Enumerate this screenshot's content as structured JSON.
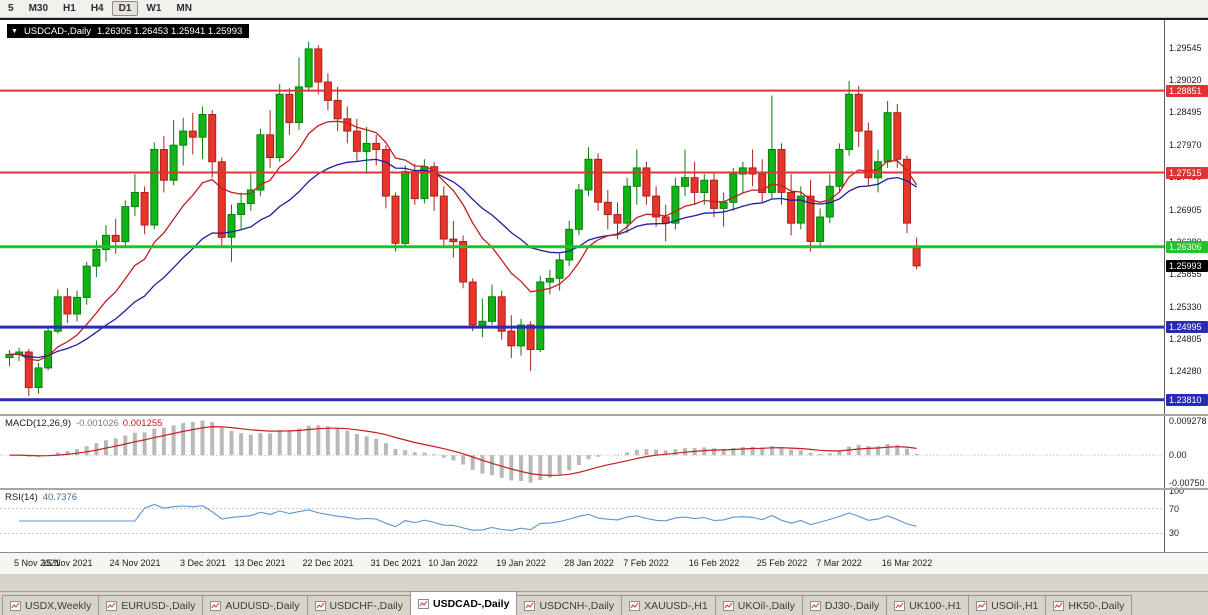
{
  "toolbar": {
    "timeframes": [
      "5",
      "M30",
      "H1",
      "H4",
      "D1",
      "W1",
      "MN"
    ],
    "active": "D1"
  },
  "chart": {
    "title": {
      "dropdown_icon": "▼",
      "symbol": "USDCAD-,Daily",
      "ohlc_text": "1.26305 1.26453 1.25941 1.25993"
    },
    "price_axis_labels": [
      "1.29545",
      "1.29020",
      "1.28495",
      "1.27970",
      "1.27450",
      "1.26905",
      "1.26380",
      "1.25855",
      "1.25330",
      "1.24805",
      "1.24280"
    ],
    "hlines": [
      {
        "price": 1.28851,
        "label": "1.28851",
        "color": "#e03434",
        "width": 2
      },
      {
        "price": 1.27515,
        "label": "1.27515",
        "color": "#e03434",
        "width": 2
      },
      {
        "price": 1.26306,
        "label": "1.26306",
        "color": "#1dc42d",
        "width": 3
      },
      {
        "price": 1.24995,
        "label": "1.24995",
        "color": "#2a2ab8",
        "width": 3
      },
      {
        "price": 1.2381,
        "label": "1.23810",
        "color": "#2a2ab8",
        "width": 3
      }
    ],
    "current_price": {
      "label": "1.25993",
      "value": 1.25993,
      "bg": "#000000"
    },
    "colors": {
      "up_fill": "#10b415",
      "up_stroke": "#0a7e0e",
      "down_fill": "#e6352b",
      "down_stroke": "#a8221b",
      "ma_fast": "#c41e1e",
      "ma_slow": "#1f1f9e"
    }
  },
  "macd": {
    "label": "MACD(12,26,9)",
    "value_main": "-0.001026",
    "value_signal": "0.001255",
    "axis_labels": [
      "0.009278",
      "0.00",
      "-0.00750"
    ],
    "histogram_color": "#b9b9b9",
    "signal_color": "#c41e1e"
  },
  "rsi": {
    "label": "RSI(14)",
    "value": "40.7376",
    "axis_labels": [
      "100",
      "70",
      "30"
    ],
    "levels": [
      70,
      30
    ],
    "line_color": "#5b95cf"
  },
  "x_axis": {
    "labels": [
      {
        "text": "5 Nov 2021",
        "i": 0
      },
      {
        "text": "15 Nov 2021",
        "i": 6
      },
      {
        "text": "24 Nov 2021",
        "i": 13
      },
      {
        "text": "3 Dec 2021",
        "i": 20
      },
      {
        "text": "13 Dec 2021",
        "i": 26
      },
      {
        "text": "22 Dec 2021",
        "i": 33
      },
      {
        "text": "31 Dec 2021",
        "i": 40
      },
      {
        "text": "10 Jan 2022",
        "i": 46
      },
      {
        "text": "19 Jan 2022",
        "i": 53
      },
      {
        "text": "28 Jan 2022",
        "i": 60
      },
      {
        "text": "7 Feb 2022",
        "i": 66
      },
      {
        "text": "16 Feb 2022",
        "i": 73
      },
      {
        "text": "25 Feb 2022",
        "i": 80
      },
      {
        "text": "7 Mar 2022",
        "i": 86
      },
      {
        "text": "16 Mar 2022",
        "i": 93
      }
    ]
  },
  "tabs": {
    "items": [
      "USDX,Weekly",
      "EURUSD-,Daily",
      "AUDUSD-,Daily",
      "USDCHF-,Daily",
      "USDCAD-,Daily",
      "USDCNH-,Daily",
      "XAUUSD-,H1",
      "UKOil-,Daily",
      "DJ30-,Daily",
      "UK100-,H1",
      "USOil-,H1",
      "HK50-,Daily"
    ],
    "active_index": 4
  },
  "chart_data": {
    "type": "candlestick",
    "symbol": "USDCAD-",
    "timeframe": "Daily",
    "last_ohlc": {
      "open": 1.26305,
      "high": 1.26453,
      "low": 1.25941,
      "close": 1.25993
    },
    "indicators": {
      "ma_fast_period": 12,
      "ma_slow_period": 26,
      "macd_params": [
        12,
        26,
        9
      ],
      "macd_values": [
        -0.001026,
        0.001255
      ],
      "rsi_period": 14,
      "rsi_value": 40.7376
    },
    "ohlc": [
      [
        1.245,
        1.2462,
        1.2436,
        1.2455
      ],
      [
        1.2455,
        1.2466,
        1.2444,
        1.2459
      ],
      [
        1.2459,
        1.2464,
        1.2387,
        1.2401
      ],
      [
        1.2401,
        1.2441,
        1.2391,
        1.2433
      ],
      [
        1.2433,
        1.2501,
        1.2429,
        1.2493
      ],
      [
        1.2493,
        1.2561,
        1.2489,
        1.2549
      ],
      [
        1.2549,
        1.2563,
        1.2506,
        1.2521
      ],
      [
        1.2521,
        1.2559,
        1.2509,
        1.2548
      ],
      [
        1.2548,
        1.2606,
        1.2536,
        1.2599
      ],
      [
        1.2599,
        1.2641,
        1.2581,
        1.2626
      ],
      [
        1.2626,
        1.2666,
        1.2606,
        1.2649
      ],
      [
        1.2649,
        1.2676,
        1.2619,
        1.2639
      ],
      [
        1.2639,
        1.2706,
        1.2629,
        1.2696
      ],
      [
        1.2696,
        1.2749,
        1.2681,
        1.2719
      ],
      [
        1.2719,
        1.2729,
        1.2651,
        1.2666
      ],
      [
        1.2666,
        1.2801,
        1.2659,
        1.2789
      ],
      [
        1.2789,
        1.2811,
        1.2719,
        1.2739
      ],
      [
        1.2739,
        1.2837,
        1.2731,
        1.2796
      ],
      [
        1.2796,
        1.2841,
        1.2763,
        1.2819
      ],
      [
        1.2819,
        1.2849,
        1.2781,
        1.2809
      ],
      [
        1.2809,
        1.2859,
        1.2773,
        1.2846
      ],
      [
        1.2846,
        1.2853,
        1.2743,
        1.2769
      ],
      [
        1.2769,
        1.2776,
        1.2629,
        1.2646
      ],
      [
        1.2646,
        1.2699,
        1.2606,
        1.2683
      ],
      [
        1.2683,
        1.2719,
        1.2659,
        1.2701
      ],
      [
        1.2701,
        1.2753,
        1.2689,
        1.2723
      ],
      [
        1.2723,
        1.2823,
        1.2713,
        1.2813
      ],
      [
        1.2813,
        1.2853,
        1.2759,
        1.2776
      ],
      [
        1.2776,
        1.2896,
        1.2769,
        1.2879
      ],
      [
        1.2879,
        1.2889,
        1.2813,
        1.2833
      ],
      [
        1.2833,
        1.2939,
        1.2821,
        1.2891
      ],
      [
        1.2891,
        1.2965,
        1.2883,
        1.2953
      ],
      [
        1.2953,
        1.2959,
        1.2879,
        1.2899
      ],
      [
        1.2899,
        1.2913,
        1.2853,
        1.2869
      ],
      [
        1.2869,
        1.2891,
        1.2819,
        1.2839
      ],
      [
        1.2839,
        1.2859,
        1.2799,
        1.2819
      ],
      [
        1.2819,
        1.2839,
        1.2769,
        1.2786
      ],
      [
        1.2786,
        1.2826,
        1.2749,
        1.2799
      ],
      [
        1.2799,
        1.2813,
        1.2763,
        1.2789
      ],
      [
        1.2789,
        1.2796,
        1.2693,
        1.2713
      ],
      [
        1.2713,
        1.2719,
        1.2623,
        1.2636
      ],
      [
        1.2636,
        1.2763,
        1.2629,
        1.2753
      ],
      [
        1.2753,
        1.2766,
        1.2699,
        1.2709
      ],
      [
        1.2709,
        1.2773,
        1.2701,
        1.2761
      ],
      [
        1.2761,
        1.2769,
        1.2689,
        1.2713
      ],
      [
        1.2713,
        1.2729,
        1.2633,
        1.2643
      ],
      [
        1.2643,
        1.2673,
        1.2613,
        1.2639
      ],
      [
        1.2639,
        1.2649,
        1.2563,
        1.2573
      ],
      [
        1.2573,
        1.2579,
        1.2493,
        1.2503
      ],
      [
        1.2503,
        1.2546,
        1.2483,
        1.2509
      ],
      [
        1.2509,
        1.2569,
        1.2503,
        1.2549
      ],
      [
        1.2549,
        1.2559,
        1.2479,
        1.2493
      ],
      [
        1.2493,
        1.2519,
        1.2449,
        1.2469
      ],
      [
        1.2469,
        1.2513,
        1.2453,
        1.2503
      ],
      [
        1.2503,
        1.2509,
        1.2428,
        1.2463
      ],
      [
        1.2463,
        1.2583,
        1.2459,
        1.2573
      ],
      [
        1.2573,
        1.2593,
        1.2553,
        1.2579
      ],
      [
        1.2579,
        1.2619,
        1.2559,
        1.2609
      ],
      [
        1.2609,
        1.2673,
        1.2599,
        1.2659
      ],
      [
        1.2659,
        1.2733,
        1.2649,
        1.2723
      ],
      [
        1.2723,
        1.2793,
        1.2713,
        1.2773
      ],
      [
        1.2773,
        1.2783,
        1.2689,
        1.2703
      ],
      [
        1.2703,
        1.2723,
        1.2659,
        1.2683
      ],
      [
        1.2683,
        1.2703,
        1.2643,
        1.2669
      ],
      [
        1.2669,
        1.2743,
        1.2653,
        1.2729
      ],
      [
        1.2729,
        1.2789,
        1.2699,
        1.2759
      ],
      [
        1.2759,
        1.2769,
        1.2699,
        1.2713
      ],
      [
        1.2713,
        1.2729,
        1.2663,
        1.2679
      ],
      [
        1.2679,
        1.2699,
        1.2639,
        1.2669
      ],
      [
        1.2669,
        1.2743,
        1.2659,
        1.2729
      ],
      [
        1.2729,
        1.2789,
        1.2713,
        1.2743
      ],
      [
        1.2743,
        1.2769,
        1.2699,
        1.2719
      ],
      [
        1.2719,
        1.2749,
        1.2699,
        1.2739
      ],
      [
        1.2739,
        1.2753,
        1.2679,
        1.2693
      ],
      [
        1.2693,
        1.2719,
        1.2663,
        1.2703
      ],
      [
        1.2703,
        1.2759,
        1.2689,
        1.2749
      ],
      [
        1.2749,
        1.2769,
        1.2719,
        1.2759
      ],
      [
        1.2759,
        1.2789,
        1.2729,
        1.2749
      ],
      [
        1.2749,
        1.2773,
        1.2703,
        1.2719
      ],
      [
        1.2719,
        1.2877,
        1.2709,
        1.2789
      ],
      [
        1.2789,
        1.2799,
        1.2699,
        1.2719
      ],
      [
        1.2719,
        1.2749,
        1.2649,
        1.2669
      ],
      [
        1.2669,
        1.2729,
        1.2659,
        1.2713
      ],
      [
        1.2713,
        1.2739,
        1.2623,
        1.2639
      ],
      [
        1.2639,
        1.2693,
        1.2629,
        1.2679
      ],
      [
        1.2679,
        1.2749,
        1.2669,
        1.2729
      ],
      [
        1.2729,
        1.2799,
        1.2719,
        1.2789
      ],
      [
        1.2789,
        1.2901,
        1.2779,
        1.2879
      ],
      [
        1.2879,
        1.2893,
        1.2793,
        1.2819
      ],
      [
        1.2819,
        1.2833,
        1.2729,
        1.2743
      ],
      [
        1.2743,
        1.2789,
        1.2719,
        1.2769
      ],
      [
        1.2769,
        1.2868,
        1.2759,
        1.2849
      ],
      [
        1.2849,
        1.2863,
        1.2759,
        1.2773
      ],
      [
        1.2773,
        1.2779,
        1.2653,
        1.2669
      ],
      [
        1.26305,
        1.26453,
        1.25941,
        1.25993
      ]
    ]
  }
}
